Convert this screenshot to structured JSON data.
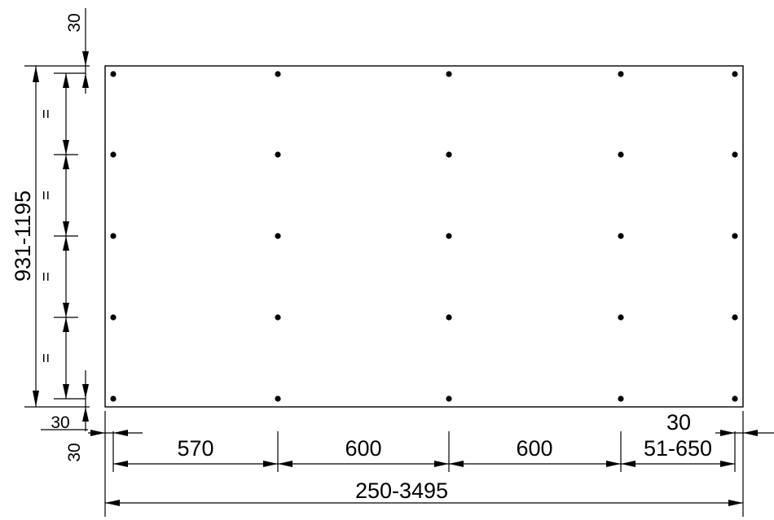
{
  "drawing": {
    "height_range": "931-1195",
    "total_width": "250-3495",
    "spacings": [
      "570",
      "600",
      "600",
      "51-650"
    ],
    "edge_offset_top": "30",
    "edge_offset_bottom_left": "30",
    "edge_offset_bottom": "30",
    "edge_offset_right": "30",
    "equal_marks": [
      "=",
      "=",
      "=",
      "="
    ],
    "grid": {
      "columns": 5,
      "rows": 5
    }
  }
}
